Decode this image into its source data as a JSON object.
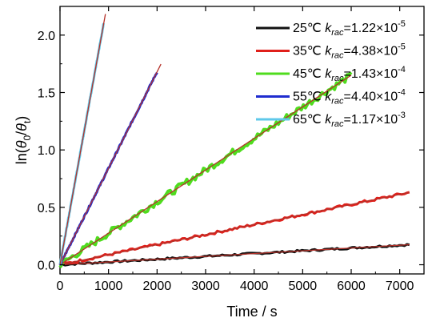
{
  "chart_data": {
    "type": "scatter",
    "xlabel": "Time / s",
    "ylabel": {
      "prefix": "ln(",
      "theta": "θ",
      "sub0": "0",
      "slash": "/",
      "subt": "t",
      "suffix": ")"
    },
    "xlim": [
      0,
      7500
    ],
    "ylim": [
      -0.08,
      2.25
    ],
    "xticks": [
      0,
      1000,
      2000,
      3000,
      4000,
      5000,
      6000,
      7000
    ],
    "yticks": [
      0.0,
      0.5,
      1.0,
      1.5,
      2.0
    ],
    "xtick_labels": [
      "0",
      "1000",
      "2000",
      "3000",
      "4000",
      "5000",
      "6000",
      "7000"
    ],
    "ytick_labels": [
      "0.0",
      "0.5",
      "1.0",
      "1.5",
      "2.0"
    ],
    "grid": false,
    "legend_position": "top-right",
    "fit_line_color": "#b5322a",
    "series": [
      {
        "name": "25℃",
        "k_label": "k",
        "k_sub": "rac",
        "k_value": "=1.22×10",
        "k_exp": "-5",
        "color": "#111111",
        "x_end": 7200,
        "y_end": 0.175
      },
      {
        "name": "35℃",
        "k_label": "k",
        "k_sub": "rac",
        "k_value": "=4.38×10",
        "k_exp": "-5",
        "color": "#e0201b",
        "x_end": 7200,
        "y_end": 0.63
      },
      {
        "name": "45℃",
        "k_label": "k",
        "k_sub": "rac",
        "k_value": "=1.43×10",
        "k_exp": "-4",
        "color": "#4fdc1e",
        "x_end": 6000,
        "y_end": 1.65
      },
      {
        "name": "55℃",
        "k_label": "k",
        "k_sub": "rac",
        "k_value": "=4.40×10",
        "k_exp": "-4",
        "color": "#1f2ccf",
        "x_end": 2000,
        "y_end": 1.68
      },
      {
        "name": "65℃",
        "k_label": "k",
        "k_sub": "rac",
        "k_value": "=1.17×10",
        "k_exp": "-3",
        "color": "#5fc8ea",
        "x_end": 900,
        "y_end": 2.1
      }
    ]
  }
}
